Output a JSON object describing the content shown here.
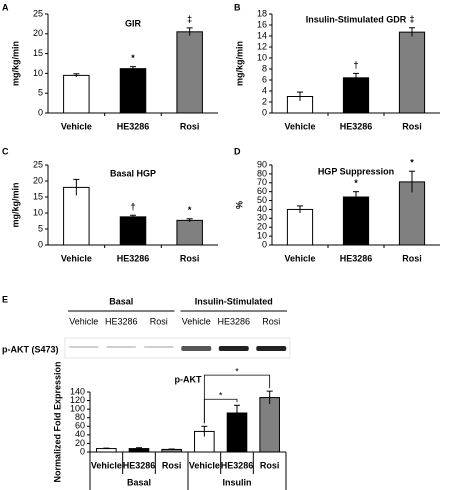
{
  "chart_data": [
    {
      "type": "bar",
      "panel": "A",
      "title": "GIR",
      "y_label": "mg/kg/min",
      "categories": [
        "Vehicle",
        "HE3286",
        "Rosi"
      ],
      "values": [
        9.5,
        11.2,
        20.5
      ],
      "errors": [
        0.4,
        0.5,
        1.0
      ],
      "colors": [
        "#ffffff",
        "#000000",
        "#808080"
      ],
      "markers": [
        null,
        "*",
        "‡"
      ],
      "ylim": [
        0,
        25
      ],
      "yticks": [
        0,
        5,
        10,
        15,
        20,
        25
      ]
    },
    {
      "type": "bar",
      "panel": "B",
      "title": "Insulin-Stimulated GDR",
      "y_label": "mg/kg/min",
      "categories": [
        "Vehicle",
        "HE3286",
        "Rosi"
      ],
      "values": [
        3.0,
        6.4,
        14.7
      ],
      "errors": [
        0.8,
        0.8,
        0.8
      ],
      "colors": [
        "#ffffff",
        "#000000",
        "#808080"
      ],
      "markers": [
        null,
        "†",
        "‡"
      ],
      "ylim": [
        0,
        18
      ],
      "yticks": [
        0,
        2,
        4,
        6,
        8,
        10,
        12,
        14,
        16,
        18
      ]
    },
    {
      "type": "bar",
      "panel": "C",
      "title": "Basal HGP",
      "y_label": "mg/kg/min",
      "categories": [
        "Vehicle",
        "HE3286",
        "Rosi"
      ],
      "values": [
        18.0,
        8.8,
        7.7
      ],
      "errors": [
        2.5,
        0.5,
        0.5
      ],
      "colors": [
        "#ffffff",
        "#000000",
        "#808080"
      ],
      "markers": [
        null,
        "†",
        "*"
      ],
      "ylim": [
        0,
        25
      ],
      "yticks": [
        0,
        5,
        10,
        15,
        20,
        25
      ]
    },
    {
      "type": "bar",
      "panel": "D",
      "title": "HGP Suppression",
      "y_label": "%",
      "categories": [
        "Vehicle",
        "HE3286",
        "Rosi"
      ],
      "values": [
        40,
        54,
        71
      ],
      "errors": [
        4,
        6,
        12
      ],
      "colors": [
        "#ffffff",
        "#000000",
        "#808080"
      ],
      "markers": [
        null,
        "*",
        "*"
      ],
      "ylim": [
        0,
        90
      ],
      "yticks": [
        0,
        10,
        20,
        30,
        40,
        50,
        60,
        70,
        80,
        90
      ]
    },
    {
      "type": "grouped_bar",
      "panel": "E",
      "title": "p-AKT",
      "y_label": "Normalized Fold Expression",
      "blot": {
        "row_label": "p-AKT (S473)",
        "groups": [
          {
            "label": "Basal",
            "lanes": [
              "Vehicle",
              "HE3286",
              "Rosi"
            ]
          },
          {
            "label": "Insulin-Stimulated",
            "lanes": [
              "Vehicle",
              "HE3286",
              "Rosi"
            ]
          }
        ]
      },
      "groups": [
        {
          "label": "Basal",
          "categories": [
            "Vehicle",
            "HE3286",
            "Rosi"
          ],
          "values": [
            8,
            8,
            6
          ],
          "errors": [
            1,
            2,
            1
          ],
          "colors": [
            "#ffffff",
            "#000000",
            "#808080"
          ],
          "markers": [
            null,
            null,
            null
          ]
        },
        {
          "label": "Insulin",
          "categories": [
            "Vehicle",
            "HE3286",
            "Rosi"
          ],
          "values": [
            48,
            91,
            127
          ],
          "errors": [
            12,
            18,
            15
          ],
          "colors": [
            "#ffffff",
            "#000000",
            "#808080"
          ],
          "markers": [
            null,
            "*",
            "*"
          ]
        }
      ],
      "ylim": [
        0,
        140
      ],
      "yticks": [
        0,
        20,
        40,
        60,
        80,
        100,
        120,
        140
      ]
    }
  ]
}
